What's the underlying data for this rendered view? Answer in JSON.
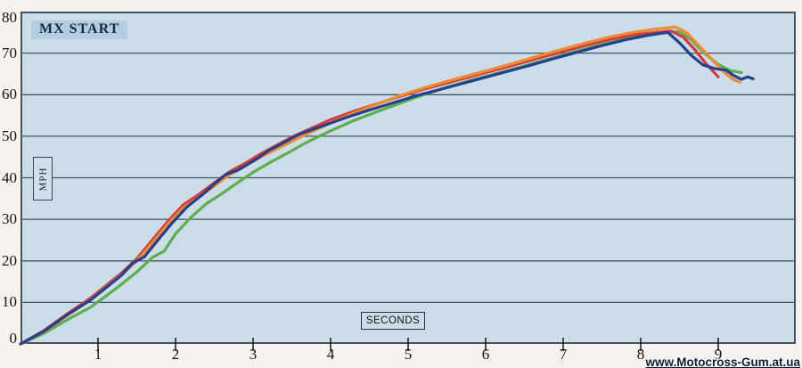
{
  "watermark": {
    "text": "www.Motocross-Gum.at.ua"
  },
  "colors": {
    "page_background": "#f6f3ee",
    "plot_background": "#cbdde9",
    "title_box_background": "#b3cee1",
    "gridline": "#46545e",
    "plot_border": "#46545e",
    "tick": "#222222"
  },
  "chart_data": {
    "type": "line",
    "title": "MX START",
    "xlabel": "SECONDS",
    "ylabel": "MPH",
    "xlim": [
      0,
      10
    ],
    "ylim": [
      0,
      80
    ],
    "x_ticks": [
      1,
      2,
      3,
      4,
      5,
      6,
      7,
      8,
      9
    ],
    "y_ticks": [
      0,
      10,
      20,
      30,
      40,
      50,
      60,
      70,
      80
    ],
    "grid": "horizontal-only",
    "legend": "none",
    "series": [
      {
        "name": "green-run",
        "color": "#5fae4d",
        "points": [
          [
            0,
            0
          ],
          [
            0.3,
            2.5
          ],
          [
            0.6,
            5.8
          ],
          [
            0.9,
            8.8
          ],
          [
            1.1,
            11.5
          ],
          [
            1.3,
            14.3
          ],
          [
            1.5,
            17.3
          ],
          [
            1.7,
            20.8
          ],
          [
            1.85,
            22.3
          ],
          [
            2.0,
            26.5
          ],
          [
            2.2,
            30.5
          ],
          [
            2.4,
            33.8
          ],
          [
            2.6,
            36.2
          ],
          [
            2.8,
            38.8
          ],
          [
            3.0,
            41.3
          ],
          [
            3.2,
            43.5
          ],
          [
            3.45,
            46
          ],
          [
            3.7,
            48.6
          ],
          [
            4.0,
            51.3
          ],
          [
            4.3,
            53.8
          ],
          [
            4.6,
            55.9
          ],
          [
            4.9,
            58
          ],
          [
            5.2,
            60
          ],
          [
            5.5,
            61.8
          ],
          [
            5.8,
            63.4
          ],
          [
            6.1,
            64.9
          ],
          [
            6.4,
            66.4
          ],
          [
            6.7,
            68
          ],
          [
            7.0,
            69.6
          ],
          [
            7.3,
            71.1
          ],
          [
            7.6,
            72.6
          ],
          [
            7.9,
            73.8
          ],
          [
            8.2,
            74.7
          ],
          [
            8.5,
            75.2
          ],
          [
            8.65,
            73.2
          ],
          [
            8.8,
            70.3
          ],
          [
            9.0,
            67.3
          ],
          [
            9.15,
            65.8
          ],
          [
            9.3,
            65.3
          ]
        ]
      },
      {
        "name": "red-run",
        "color": "#d63b3b",
        "points": [
          [
            0,
            0
          ],
          [
            0.3,
            3.2
          ],
          [
            0.6,
            7.2
          ],
          [
            0.9,
            11
          ],
          [
            1.1,
            14
          ],
          [
            1.3,
            17
          ],
          [
            1.5,
            20.5
          ],
          [
            1.7,
            25
          ],
          [
            1.9,
            29.5
          ],
          [
            2.1,
            33.5
          ],
          [
            2.3,
            36
          ],
          [
            2.5,
            38.8
          ],
          [
            2.7,
            41.5
          ],
          [
            2.9,
            43.5
          ],
          [
            3.1,
            45.8
          ],
          [
            3.3,
            47.8
          ],
          [
            3.5,
            49.8
          ],
          [
            3.7,
            51.5
          ],
          [
            4.0,
            54
          ],
          [
            4.3,
            56
          ],
          [
            4.6,
            57.8
          ],
          [
            4.9,
            59.6
          ],
          [
            5.2,
            61.3
          ],
          [
            5.5,
            62.8
          ],
          [
            5.8,
            64.3
          ],
          [
            6.1,
            65.8
          ],
          [
            6.4,
            67.3
          ],
          [
            6.7,
            68.9
          ],
          [
            7.0,
            70.4
          ],
          [
            7.3,
            71.9
          ],
          [
            7.6,
            73.3
          ],
          [
            7.9,
            74.4
          ],
          [
            8.2,
            75
          ],
          [
            8.4,
            75.3
          ],
          [
            8.55,
            73.8
          ],
          [
            8.7,
            70.8
          ],
          [
            8.85,
            67.3
          ],
          [
            9.0,
            64.3
          ]
        ]
      },
      {
        "name": "orange-run",
        "color": "#ef8c33",
        "points": [
          [
            0,
            0
          ],
          [
            0.3,
            2.9
          ],
          [
            0.6,
            6.8
          ],
          [
            0.9,
            10.6
          ],
          [
            1.1,
            13.6
          ],
          [
            1.3,
            16.6
          ],
          [
            1.5,
            20
          ],
          [
            1.7,
            24.3
          ],
          [
            1.9,
            28.8
          ],
          [
            2.1,
            32.8
          ],
          [
            2.3,
            35.3
          ],
          [
            2.5,
            38
          ],
          [
            2.7,
            40.8
          ],
          [
            2.9,
            42.8
          ],
          [
            3.1,
            45
          ],
          [
            3.4,
            47.8
          ],
          [
            3.7,
            50.6
          ],
          [
            4.0,
            53.2
          ],
          [
            4.3,
            55.6
          ],
          [
            4.6,
            57.7
          ],
          [
            4.9,
            59.8
          ],
          [
            5.2,
            61.6
          ],
          [
            5.5,
            63.2
          ],
          [
            5.8,
            64.7
          ],
          [
            6.1,
            66.2
          ],
          [
            6.4,
            67.8
          ],
          [
            6.7,
            69.4
          ],
          [
            7.0,
            71
          ],
          [
            7.3,
            72.5
          ],
          [
            7.6,
            73.9
          ],
          [
            7.9,
            75
          ],
          [
            8.2,
            75.8
          ],
          [
            8.45,
            76.3
          ],
          [
            8.6,
            74.8
          ],
          [
            8.75,
            71.8
          ],
          [
            8.95,
            67.8
          ],
          [
            9.1,
            65
          ],
          [
            9.2,
            63.6
          ],
          [
            9.28,
            63
          ]
        ]
      },
      {
        "name": "blue-run",
        "color": "#24418f",
        "points": [
          [
            0,
            0
          ],
          [
            0.3,
            3
          ],
          [
            0.6,
            7
          ],
          [
            0.9,
            10.5
          ],
          [
            1.1,
            13.5
          ],
          [
            1.3,
            16.5
          ],
          [
            1.45,
            19.5
          ],
          [
            1.6,
            21
          ],
          [
            1.75,
            24.5
          ],
          [
            1.95,
            29
          ],
          [
            2.15,
            33
          ],
          [
            2.35,
            36
          ],
          [
            2.5,
            38.5
          ],
          [
            2.65,
            40.8
          ],
          [
            2.8,
            41.8
          ],
          [
            3.0,
            44
          ],
          [
            3.2,
            46.5
          ],
          [
            3.4,
            48.5
          ],
          [
            3.6,
            50.5
          ],
          [
            3.9,
            52.5
          ],
          [
            4.2,
            54.5
          ],
          [
            4.5,
            56.3
          ],
          [
            4.8,
            58
          ],
          [
            5.1,
            59.7
          ],
          [
            5.4,
            61.2
          ],
          [
            5.7,
            62.7
          ],
          [
            6.0,
            64.2
          ],
          [
            6.3,
            65.7
          ],
          [
            6.6,
            67.2
          ],
          [
            6.9,
            68.8
          ],
          [
            7.2,
            70.3
          ],
          [
            7.5,
            71.8
          ],
          [
            7.8,
            73.2
          ],
          [
            8.1,
            74.3
          ],
          [
            8.35,
            75
          ],
          [
            8.5,
            72.5
          ],
          [
            8.65,
            69.5
          ],
          [
            8.8,
            67.2
          ],
          [
            8.95,
            66.3
          ],
          [
            9.1,
            65.9
          ],
          [
            9.2,
            64.6
          ],
          [
            9.3,
            63.7
          ],
          [
            9.38,
            64.3
          ],
          [
            9.45,
            63.8
          ]
        ]
      }
    ]
  }
}
